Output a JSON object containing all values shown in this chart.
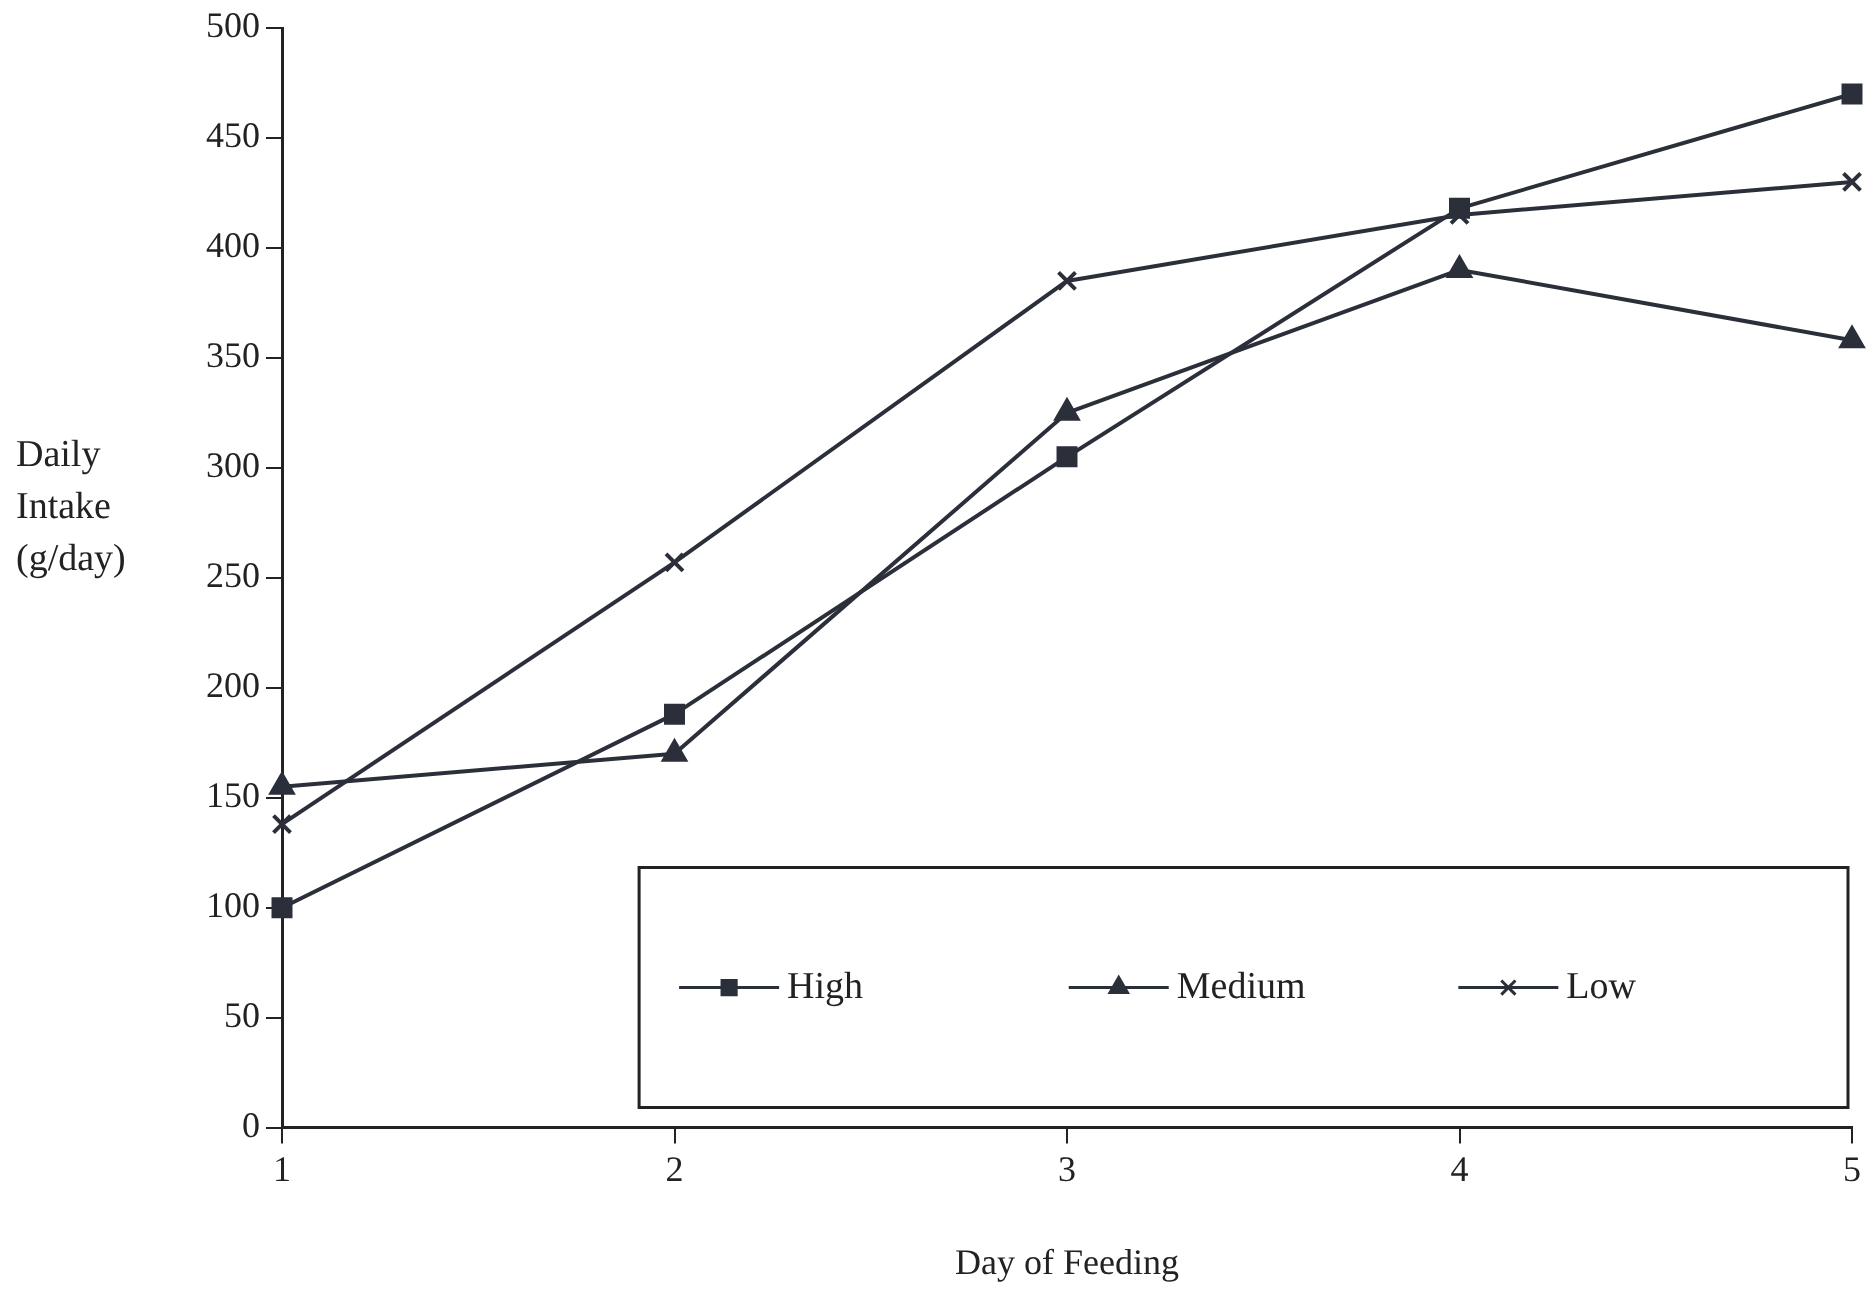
{
  "chart_data": {
    "type": "line",
    "xlabel": "Day of Feeding",
    "ylabel": "Daily Intake (g/day)",
    "categories": [
      "1",
      "2",
      "3",
      "4",
      "5"
    ],
    "series": [
      {
        "name": "High",
        "color": "#2b2f3a",
        "marker": "square",
        "values": [
          100,
          188,
          305,
          418,
          470
        ]
      },
      {
        "name": "Medium",
        "color": "#2b2f3a",
        "marker": "triangle",
        "values": [
          155,
          170,
          325,
          390,
          358
        ]
      },
      {
        "name": "Low",
        "color": "#2b2f3a",
        "marker": "cross",
        "values": [
          138,
          257,
          385,
          415,
          430
        ]
      }
    ],
    "ylim": [
      0,
      500
    ],
    "yticks": [
      0,
      50,
      100,
      150,
      200,
      250,
      300,
      350,
      400,
      450,
      500
    ],
    "grid": false,
    "legend": "bottom right"
  }
}
